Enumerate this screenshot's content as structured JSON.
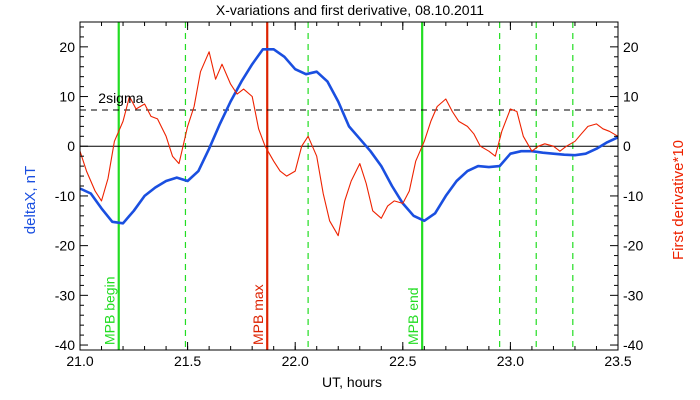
{
  "chart_data": {
    "type": "line",
    "title": "X-variations and first derivative, 08.10.2011",
    "xlabel": "UT, hours",
    "ylabel_left": "deltaX, nT",
    "ylabel_right": "First derivative*10",
    "xlim": [
      21.0,
      23.5
    ],
    "ylim": [
      -41,
      25
    ],
    "x_ticks": [
      21.0,
      21.5,
      22.0,
      22.5,
      23.0,
      23.5
    ],
    "x_tick_labels": [
      "21.0",
      "21.5",
      "22.0",
      "22.5",
      "23.0",
      "23.5"
    ],
    "y_ticks": [
      -40,
      -30,
      -20,
      -10,
      0,
      10,
      20
    ],
    "y_tick_labels": [
      "-40",
      "-30",
      "-20",
      "-10",
      "0",
      "10",
      "20"
    ],
    "grid": false,
    "threshold": {
      "label": "2sigma",
      "value": 7.3
    },
    "zero_line": 0,
    "markers": [
      {
        "label": "MPB begin",
        "x": 21.18,
        "style": "solid",
        "color": "#22dd22"
      },
      {
        "label": "MPB max",
        "x": 21.87,
        "style": "solid",
        "color": "#dd2200"
      },
      {
        "label": "MPB end",
        "x": 22.59,
        "style": "solid",
        "color": "#22dd22"
      },
      {
        "label": "",
        "x": 21.49,
        "style": "dashed",
        "color": "#22dd22"
      },
      {
        "label": "",
        "x": 22.06,
        "style": "dashed",
        "color": "#22dd22"
      },
      {
        "label": "",
        "x": 22.95,
        "style": "dashed",
        "color": "#22dd22"
      },
      {
        "label": "",
        "x": 23.12,
        "style": "dashed",
        "color": "#22dd22"
      },
      {
        "label": "",
        "x": 23.29,
        "style": "dashed",
        "color": "#22dd22"
      }
    ],
    "series": [
      {
        "color": "#1a4fe0",
        "axis": "left",
        "x": [
          21.0,
          21.05,
          21.1,
          21.15,
          21.2,
          21.25,
          21.3,
          21.35,
          21.4,
          21.45,
          21.5,
          21.55,
          21.6,
          21.65,
          21.7,
          21.75,
          21.8,
          21.85,
          21.9,
          21.95,
          22.0,
          22.05,
          22.1,
          22.15,
          22.2,
          22.25,
          22.3,
          22.35,
          22.4,
          22.45,
          22.5,
          22.55,
          22.6,
          22.65,
          22.7,
          22.75,
          22.8,
          22.85,
          22.9,
          22.95,
          23.0,
          23.05,
          23.1,
          23.15,
          23.2,
          23.25,
          23.3,
          23.35,
          23.4,
          23.45,
          23.5
        ],
        "values": [
          -8.5,
          -9.5,
          -12.5,
          -15.2,
          -15.5,
          -13.0,
          -10.0,
          -8.3,
          -7.0,
          -6.3,
          -7.0,
          -5.0,
          -0.5,
          4.5,
          9.0,
          13.0,
          16.5,
          19.5,
          19.5,
          18.0,
          15.5,
          14.5,
          15.0,
          13.0,
          9.0,
          4.0,
          1.5,
          -1.0,
          -4.0,
          -8.0,
          -11.5,
          -14.0,
          -15.0,
          -13.5,
          -10.0,
          -7.0,
          -5.0,
          -4.0,
          -4.2,
          -4.0,
          -1.5,
          -1.0,
          -1.0,
          -1.3,
          -1.5,
          -1.7,
          -1.8,
          -1.5,
          -0.5,
          0.8,
          1.8
        ]
      },
      {
        "color": "#ee2200",
        "axis": "left",
        "x": [
          21.0,
          21.03,
          21.07,
          21.1,
          21.13,
          21.16,
          21.2,
          21.23,
          21.26,
          21.3,
          21.33,
          21.36,
          21.4,
          21.43,
          21.46,
          21.5,
          21.53,
          21.56,
          21.6,
          21.63,
          21.66,
          21.7,
          21.73,
          21.76,
          21.8,
          21.83,
          21.86,
          21.9,
          21.93,
          21.96,
          22.0,
          22.03,
          22.06,
          22.1,
          22.13,
          22.16,
          22.2,
          22.23,
          22.26,
          22.3,
          22.33,
          22.36,
          22.4,
          22.43,
          22.46,
          22.5,
          22.53,
          22.56,
          22.6,
          22.63,
          22.66,
          22.7,
          22.73,
          22.76,
          22.8,
          22.83,
          22.86,
          22.9,
          22.93,
          22.96,
          23.0,
          23.03,
          23.06,
          23.1,
          23.13,
          23.16,
          23.2,
          23.23,
          23.26,
          23.3,
          23.33,
          23.36,
          23.4,
          23.43,
          23.46,
          23.5
        ],
        "values": [
          -1.0,
          -5.0,
          -9.0,
          -11.0,
          -6.5,
          1.0,
          5.0,
          10.0,
          7.5,
          8.5,
          6.0,
          5.5,
          2.0,
          -2.0,
          -3.5,
          4.0,
          8.0,
          15.0,
          19.0,
          13.5,
          16.5,
          12.5,
          10.5,
          11.5,
          10.0,
          3.5,
          0.0,
          -3.0,
          -5.0,
          -6.0,
          -5.0,
          0.0,
          2.0,
          -2.0,
          -9.5,
          -15.0,
          -18.0,
          -11.0,
          -7.0,
          -3.5,
          -7.5,
          -13.0,
          -14.5,
          -12.0,
          -11.0,
          -11.5,
          -9.0,
          -3.0,
          1.0,
          5.0,
          8.0,
          9.5,
          7.0,
          5.0,
          4.0,
          2.5,
          0.0,
          -1.0,
          -2.0,
          3.0,
          7.5,
          7.0,
          2.0,
          -1.0,
          0.0,
          0.5,
          0.0,
          -1.0,
          0.0,
          1.0,
          2.5,
          4.0,
          4.5,
          3.5,
          3.0,
          2.0
        ]
      }
    ]
  }
}
